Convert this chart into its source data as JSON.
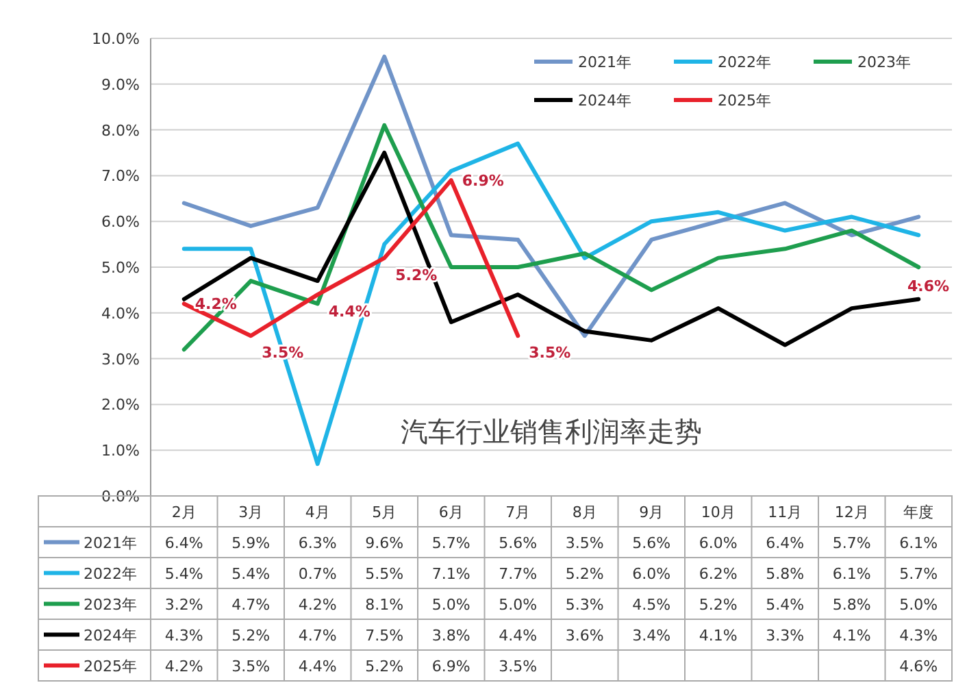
{
  "chart_data": {
    "type": "line",
    "title": "汽车行业销售利润率走势",
    "categories": [
      "2月",
      "3月",
      "4月",
      "5月",
      "6月",
      "7月",
      "8月",
      "9月",
      "10月",
      "11月",
      "12月",
      "年度"
    ],
    "ylim": [
      0,
      10
    ],
    "yticks": [
      {
        "value": 0,
        "label": "0.0%"
      },
      {
        "value": 1,
        "label": "1.0%"
      },
      {
        "value": 2,
        "label": "2.0%"
      },
      {
        "value": 3,
        "label": "3.0%"
      },
      {
        "value": 4,
        "label": "4.0%"
      },
      {
        "value": 5,
        "label": "5.0%"
      },
      {
        "value": 6,
        "label": "6.0%"
      },
      {
        "value": 7,
        "label": "7.0%"
      },
      {
        "value": 8,
        "label": "8.0%"
      },
      {
        "value": 9,
        "label": "9.0%"
      },
      {
        "value": 10,
        "label": "10.0%"
      }
    ],
    "grid": "y",
    "legend": "top right",
    "marker": "none",
    "line_style": "solid",
    "series": [
      {
        "name": "2021年",
        "color": "#7094c8",
        "values": [
          6.4,
          5.9,
          6.3,
          9.6,
          5.7,
          5.6,
          3.5,
          5.6,
          6.0,
          6.4,
          5.7,
          6.1
        ],
        "value_labels": [
          "6.4%",
          "5.9%",
          "6.3%",
          "9.6%",
          "5.7%",
          "5.6%",
          "3.5%",
          "5.6%",
          "6.0%",
          "6.4%",
          "5.7%",
          "6.1%"
        ]
      },
      {
        "name": "2022年",
        "color": "#1fb4e6",
        "values": [
          5.4,
          5.4,
          0.7,
          5.5,
          7.1,
          7.7,
          5.2,
          6.0,
          6.2,
          5.8,
          6.1,
          5.7
        ],
        "value_labels": [
          "5.4%",
          "5.4%",
          "0.7%",
          "5.5%",
          "7.1%",
          "7.7%",
          "5.2%",
          "6.0%",
          "6.2%",
          "5.8%",
          "6.1%",
          "5.7%"
        ]
      },
      {
        "name": "2023年",
        "color": "#1e9e4e",
        "values": [
          3.2,
          4.7,
          4.2,
          8.1,
          5.0,
          5.0,
          5.3,
          4.5,
          5.2,
          5.4,
          5.8,
          5.0
        ],
        "value_labels": [
          "3.2%",
          "4.7%",
          "4.2%",
          "8.1%",
          "5.0%",
          "5.0%",
          "5.3%",
          "4.5%",
          "5.2%",
          "5.4%",
          "5.8%",
          "5.0%"
        ]
      },
      {
        "name": "2024年",
        "color": "#000000",
        "values": [
          4.3,
          5.2,
          4.7,
          7.5,
          3.8,
          4.4,
          3.6,
          3.4,
          4.1,
          3.3,
          4.1,
          4.3
        ],
        "value_labels": [
          "4.3%",
          "5.2%",
          "4.7%",
          "7.5%",
          "3.8%",
          "4.4%",
          "3.6%",
          "3.4%",
          "4.1%",
          "3.3%",
          "4.1%",
          "4.3%"
        ]
      },
      {
        "name": "2025年",
        "color": "#e8212b",
        "data_labels": true,
        "values": [
          4.2,
          3.5,
          4.4,
          5.2,
          6.9,
          3.5,
          null,
          null,
          null,
          null,
          null,
          4.6
        ],
        "value_labels": [
          "4.2%",
          "3.5%",
          "4.4%",
          "5.2%",
          "6.9%",
          "3.5%",
          null,
          null,
          null,
          null,
          null,
          "4.6%"
        ]
      }
    ]
  }
}
